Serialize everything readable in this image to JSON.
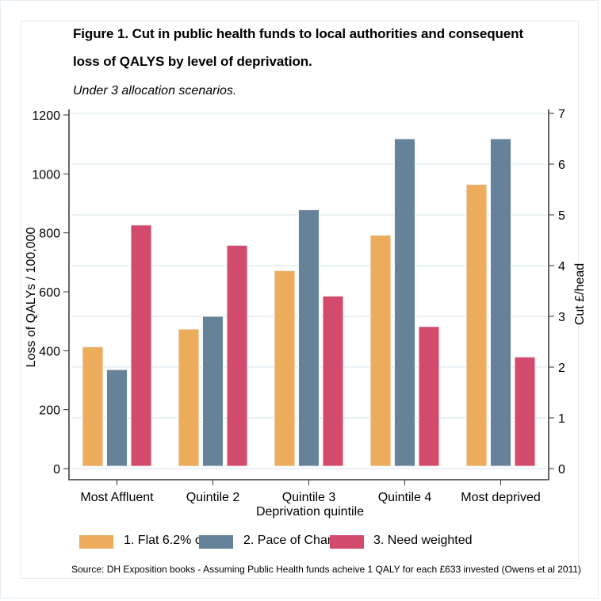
{
  "chart_data": {
    "type": "bar",
    "title": "Figure 1. Cut in public health funds to local authorities and consequent loss of QALYS by level of deprivation.",
    "title_lines": [
      "Figure 1. Cut in public health funds to local authorities and consequent",
      "loss of QALYS by level of deprivation."
    ],
    "subtitle": "Under 3 allocation scenarios.",
    "xlabel": "Deprivation quintile",
    "ylabel": "Loss of QALYs / 100,000",
    "ylabel_right": "Cut £/head",
    "categories": [
      "Most Affluent",
      "Quintile 2",
      "Quintile 3",
      "Quintile 4",
      "Most deprived"
    ],
    "series": [
      {
        "name": "1. Flat 6.2% cut",
        "color": "#EDAB5C",
        "values": [
          2.4,
          2.75,
          3.9,
          4.6,
          5.6
        ]
      },
      {
        "name": "2. Pace of Change",
        "color": "#65829A",
        "values": [
          1.95,
          3.0,
          5.1,
          6.5,
          6.5
        ]
      },
      {
        "name": "3. Need weighted",
        "color": "#D24A6C",
        "values": [
          4.8,
          4.4,
          3.4,
          2.8,
          2.2
        ]
      }
    ],
    "values_axis": "right",
    "ylim": [
      0,
      1200
    ],
    "ylim_right": [
      0,
      7
    ],
    "yticks": [
      0,
      200,
      400,
      600,
      800,
      1000,
      1200
    ],
    "yticks_right": [
      0,
      1,
      2,
      3,
      4,
      5,
      6,
      7
    ],
    "grid": true,
    "legend_position": "bottom",
    "source_note": "Source: DH Exposition books - Assuming Public Health funds acheive 1 QALY for each £633 invested (Owens et al 2011)"
  }
}
